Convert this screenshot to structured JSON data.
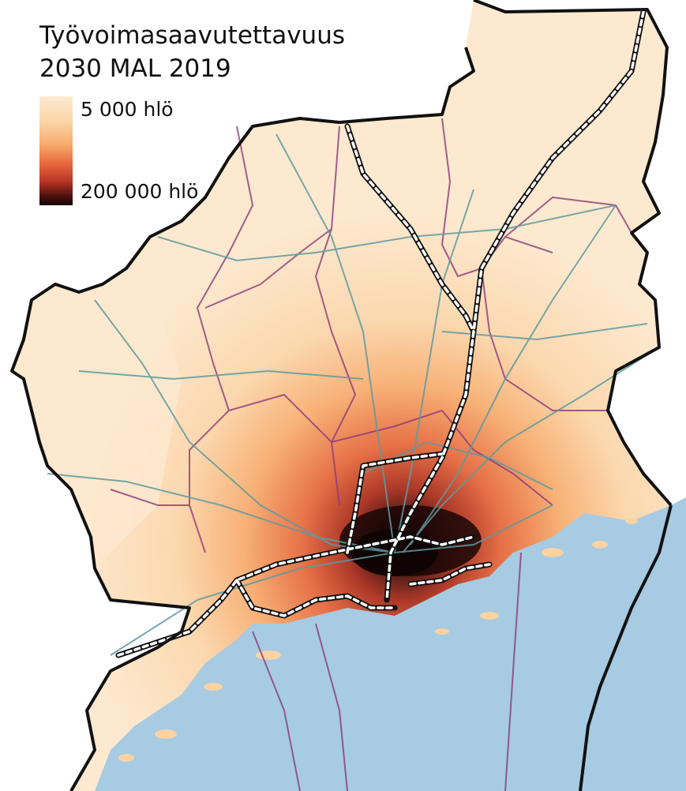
{
  "title_line1": "Työvoimasaavutettavuus",
  "title_line2": "2030 MAL 2019",
  "legend": {
    "low_label": "5 000 hlö",
    "high_label": "200 000 hlö",
    "colors": [
      "#fdebd2",
      "#fbd2a3",
      "#f6a86b",
      "#e8663d",
      "#b93524",
      "#5a1410",
      "#120404"
    ]
  },
  "colors": {
    "sea": "#a6cbe2",
    "land_base": "#fde8cc",
    "boundary": "#111111",
    "municipal_borders": "#8b3a7a",
    "roads": "#5f9aa0",
    "rail_outline": "#111111",
    "rail_dash": "#ffffff"
  }
}
